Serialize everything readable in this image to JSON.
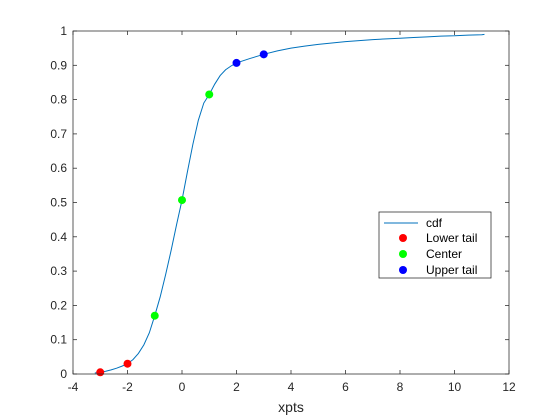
{
  "chart_data": {
    "type": "line",
    "title": "",
    "xlabel": "xpts",
    "ylabel": "",
    "xlim": [
      -4,
      12
    ],
    "ylim": [
      0,
      1
    ],
    "xticks": [
      -4,
      -2,
      0,
      2,
      4,
      6,
      8,
      10,
      12
    ],
    "yticks": [
      0,
      0.1,
      0.2,
      0.3,
      0.4,
      0.5,
      0.6,
      0.7,
      0.8,
      0.9,
      1
    ],
    "grid": false,
    "legend_position": "east",
    "curve": {
      "name": "cdf",
      "color": "#0072bd",
      "x": [
        -3.2,
        -3,
        -2.8,
        -2.6,
        -2.4,
        -2.2,
        -2,
        -1.8,
        -1.6,
        -1.4,
        -1.2,
        -1,
        -0.8,
        -0.6,
        -0.4,
        -0.2,
        0,
        0.2,
        0.4,
        0.6,
        0.8,
        1,
        1.2,
        1.4,
        1.6,
        1.8,
        2,
        2.5,
        3,
        3.5,
        4,
        4.5,
        5,
        5.5,
        6,
        6.5,
        7,
        7.5,
        8,
        8.5,
        9,
        9.5,
        10,
        10.5,
        11,
        11.1
      ],
      "y": [
        0.003,
        0.005,
        0.008,
        0.012,
        0.017,
        0.023,
        0.03,
        0.042,
        0.06,
        0.085,
        0.12,
        0.17,
        0.225,
        0.29,
        0.36,
        0.435,
        0.507,
        0.59,
        0.67,
        0.74,
        0.79,
        0.815,
        0.845,
        0.87,
        0.887,
        0.898,
        0.907,
        0.92,
        0.932,
        0.942,
        0.95,
        0.956,
        0.961,
        0.965,
        0.969,
        0.972,
        0.975,
        0.977,
        0.979,
        0.981,
        0.983,
        0.985,
        0.986,
        0.988,
        0.989,
        0.99
      ]
    },
    "series": [
      {
        "name": "Lower tail",
        "color": "#ff0000",
        "x": [
          -3,
          -2
        ],
        "y": [
          0.005,
          0.03
        ]
      },
      {
        "name": "Center",
        "color": "#00ff00",
        "x": [
          -1,
          0,
          1
        ],
        "y": [
          0.17,
          0.507,
          0.815
        ]
      },
      {
        "name": "Upper tail",
        "color": "#0000ff",
        "x": [
          2,
          3
        ],
        "y": [
          0.907,
          0.932
        ]
      }
    ]
  }
}
